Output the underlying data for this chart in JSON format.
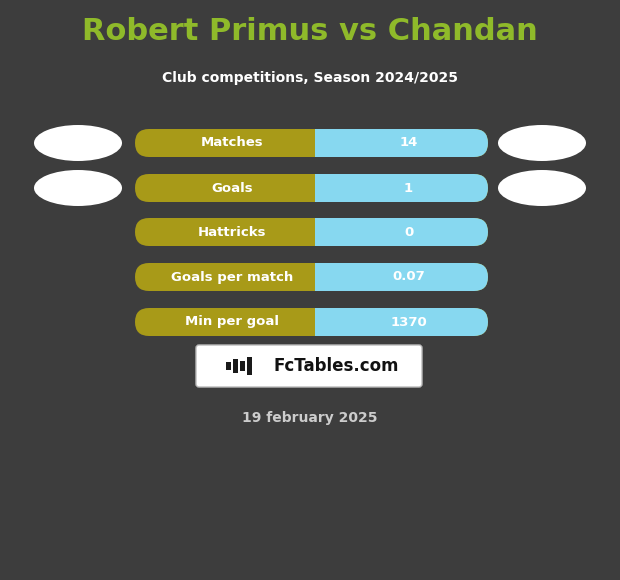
{
  "title": "Robert Primus vs Chandan",
  "subtitle": "Club competitions, Season 2024/2025",
  "date_label": "19 february 2025",
  "background_color": "#3d3d3d",
  "title_color": "#8fba2a",
  "subtitle_color": "#ffffff",
  "date_color": "#cccccc",
  "bar_left_color": "#a89a18",
  "bar_right_color": "#87d8f0",
  "bar_text_color": "#ffffff",
  "stats": [
    {
      "label": "Matches",
      "value": "14"
    },
    {
      "label": "Goals",
      "value": "1"
    },
    {
      "label": "Hattricks",
      "value": "0"
    },
    {
      "label": "Goals per match",
      "value": "0.07"
    },
    {
      "label": "Min per goal",
      "value": "1370"
    }
  ],
  "ellipse_color": "#ffffff",
  "logo_box_facecolor": "#ffffff",
  "logo_box_edgecolor": "#cccccc",
  "logo_text": "FcTables.com",
  "logo_icon_color": "#1a1a1a",
  "figsize": [
    6.2,
    5.8
  ],
  "dpi": 100
}
